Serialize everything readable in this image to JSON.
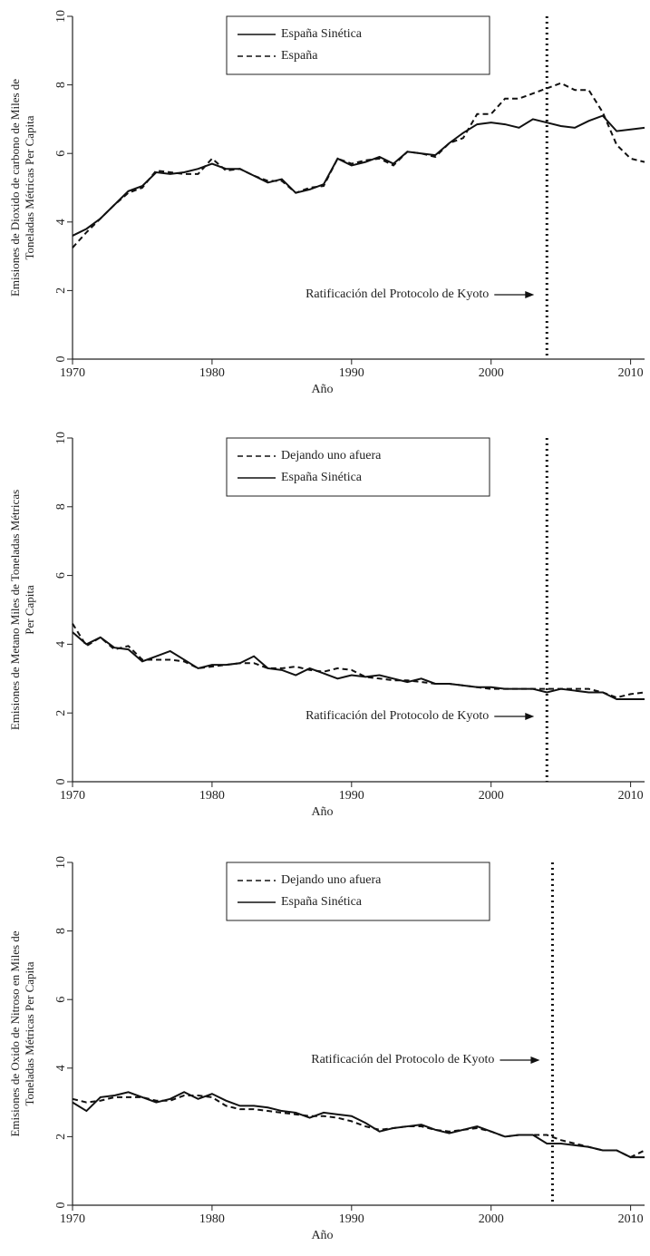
{
  "chart_data": [
    {
      "type": "line",
      "xlabel": "Año",
      "ylabel": [
        "Emisiones de Dioxido de carbono de Miles de",
        "Toneladas Métricas Per Capita"
      ],
      "x": [
        1970,
        1971,
        1972,
        1973,
        1974,
        1975,
        1976,
        1977,
        1978,
        1979,
        1980,
        1981,
        1982,
        1983,
        1984,
        1985,
        1986,
        1987,
        1988,
        1989,
        1990,
        1991,
        1992,
        1993,
        1994,
        1995,
        1996,
        1997,
        1998,
        1999,
        2000,
        2001,
        2002,
        2003,
        2004,
        2005,
        2006,
        2007,
        2008,
        2009,
        2010,
        2011
      ],
      "series": [
        {
          "name": "España Sinética",
          "color": "#111111",
          "dash": "solid",
          "values": [
            3.6,
            3.8,
            4.1,
            4.5,
            4.9,
            5.05,
            5.45,
            5.4,
            5.45,
            5.55,
            5.7,
            5.55,
            5.55,
            5.35,
            5.15,
            5.25,
            4.85,
            4.95,
            5.1,
            5.85,
            5.65,
            5.75,
            5.9,
            5.7,
            6.05,
            6.0,
            5.95,
            6.3,
            6.6,
            6.85,
            6.9,
            6.85,
            6.75,
            7.0,
            6.9,
            6.8,
            6.75,
            6.95,
            7.1,
            6.65,
            6.7,
            6.75
          ]
        },
        {
          "name": "España",
          "color": "#111111",
          "dash": "dashed",
          "values": [
            3.25,
            3.7,
            4.1,
            4.5,
            4.85,
            5.0,
            5.5,
            5.45,
            5.4,
            5.4,
            5.85,
            5.5,
            5.55,
            5.35,
            5.2,
            5.2,
            4.85,
            5.0,
            5.05,
            5.85,
            5.7,
            5.8,
            5.85,
            5.65,
            6.05,
            6.0,
            5.9,
            6.3,
            6.45,
            7.15,
            7.15,
            7.6,
            7.6,
            7.75,
            7.9,
            8.05,
            7.85,
            7.85,
            7.2,
            6.25,
            5.85,
            5.75
          ]
        }
      ],
      "xlim": [
        1970,
        2011
      ],
      "ylim": [
        0,
        10
      ],
      "xticks": [
        1970,
        1980,
        1990,
        2000,
        2010
      ],
      "yticks": [
        0,
        2,
        4,
        6,
        8,
        10
      ],
      "vline": 2004,
      "annotation": "Ratificación del Protocolo de Kyoto"
    },
    {
      "type": "line",
      "xlabel": "Año",
      "ylabel": [
        "Emisiones de Metano Miles de Toneladas Métricas",
        "Per Capita"
      ],
      "x": [
        1970,
        1971,
        1972,
        1973,
        1974,
        1975,
        1976,
        1977,
        1978,
        1979,
        1980,
        1981,
        1982,
        1983,
        1984,
        1985,
        1986,
        1987,
        1988,
        1989,
        1990,
        1991,
        1992,
        1993,
        1994,
        1995,
        1996,
        1997,
        1998,
        1999,
        2000,
        2001,
        2002,
        2003,
        2004,
        2005,
        2006,
        2007,
        2008,
        2009,
        2010,
        2011
      ],
      "series": [
        {
          "name": "Dejando uno afuera",
          "color": "#111111",
          "dash": "dashed",
          "values": [
            4.6,
            3.95,
            4.2,
            3.85,
            3.95,
            3.55,
            3.55,
            3.55,
            3.5,
            3.3,
            3.35,
            3.4,
            3.45,
            3.45,
            3.3,
            3.3,
            3.35,
            3.25,
            3.2,
            3.3,
            3.25,
            3.05,
            3.0,
            2.95,
            2.95,
            2.9,
            2.85,
            2.85,
            2.8,
            2.75,
            2.7,
            2.7,
            2.7,
            2.7,
            2.7,
            2.7,
            2.7,
            2.7,
            2.6,
            2.45,
            2.55,
            2.6
          ]
        },
        {
          "name": "España Sinética",
          "color": "#111111",
          "dash": "solid",
          "values": [
            4.35,
            4.0,
            4.2,
            3.9,
            3.85,
            3.5,
            3.65,
            3.8,
            3.55,
            3.3,
            3.4,
            3.4,
            3.45,
            3.65,
            3.3,
            3.25,
            3.1,
            3.3,
            3.15,
            3.0,
            3.1,
            3.05,
            3.1,
            3.0,
            2.9,
            3.0,
            2.85,
            2.85,
            2.8,
            2.75,
            2.75,
            2.7,
            2.7,
            2.7,
            2.6,
            2.7,
            2.65,
            2.6,
            2.6,
            2.4,
            2.4,
            2.4
          ]
        }
      ],
      "xlim": [
        1970,
        2011
      ],
      "ylim": [
        0,
        10
      ],
      "xticks": [
        1970,
        1980,
        1990,
        2000,
        2010
      ],
      "yticks": [
        0,
        2,
        4,
        6,
        8,
        10
      ],
      "vline": 2004,
      "annotation": "Ratificación del Protocolo de Kyoto"
    },
    {
      "type": "line",
      "xlabel": "Año",
      "ylabel": [
        "Emisiones de Oxido de Nitroso en Miles de",
        "Toneladas Métricas Per Capita"
      ],
      "x": [
        1970,
        1971,
        1972,
        1973,
        1974,
        1975,
        1976,
        1977,
        1978,
        1979,
        1980,
        1981,
        1982,
        1983,
        1984,
        1985,
        1986,
        1987,
        1988,
        1989,
        1990,
        1991,
        1992,
        1993,
        1994,
        1995,
        1996,
        1997,
        1998,
        1999,
        2000,
        2001,
        2002,
        2003,
        2004,
        2005,
        2006,
        2007,
        2008,
        2009,
        2010,
        2011
      ],
      "series": [
        {
          "name": "Dejando uno afuera",
          "color": "#111111",
          "dash": "dashed",
          "values": [
            3.1,
            3.0,
            3.05,
            3.15,
            3.15,
            3.15,
            3.05,
            3.05,
            3.2,
            3.2,
            3.15,
            2.9,
            2.8,
            2.8,
            2.75,
            2.7,
            2.65,
            2.6,
            2.6,
            2.55,
            2.45,
            2.3,
            2.2,
            2.25,
            2.3,
            2.3,
            2.2,
            2.15,
            2.2,
            2.25,
            2.15,
            2.0,
            2.05,
            2.05,
            2.05,
            1.9,
            1.8,
            1.7,
            1.6,
            1.6,
            1.4,
            1.6
          ]
        },
        {
          "name": "España Sinética",
          "color": "#111111",
          "dash": "solid",
          "values": [
            3.0,
            2.75,
            3.15,
            3.2,
            3.3,
            3.15,
            3.0,
            3.1,
            3.3,
            3.1,
            3.25,
            3.05,
            2.9,
            2.9,
            2.85,
            2.75,
            2.7,
            2.55,
            2.7,
            2.65,
            2.6,
            2.4,
            2.15,
            2.25,
            2.3,
            2.35,
            2.2,
            2.1,
            2.2,
            2.3,
            2.15,
            2.0,
            2.05,
            2.05,
            1.8,
            1.8,
            1.75,
            1.7,
            1.6,
            1.6,
            1.4,
            1.4
          ]
        }
      ],
      "xlim": [
        1970,
        2011
      ],
      "ylim": [
        0,
        10
      ],
      "xticks": [
        1970,
        1980,
        1990,
        2000,
        2010
      ],
      "yticks": [
        0,
        2,
        4,
        6,
        8,
        10
      ],
      "vline": 2004.4,
      "annotation": "Ratificación del Protocolo de Kyoto"
    }
  ]
}
